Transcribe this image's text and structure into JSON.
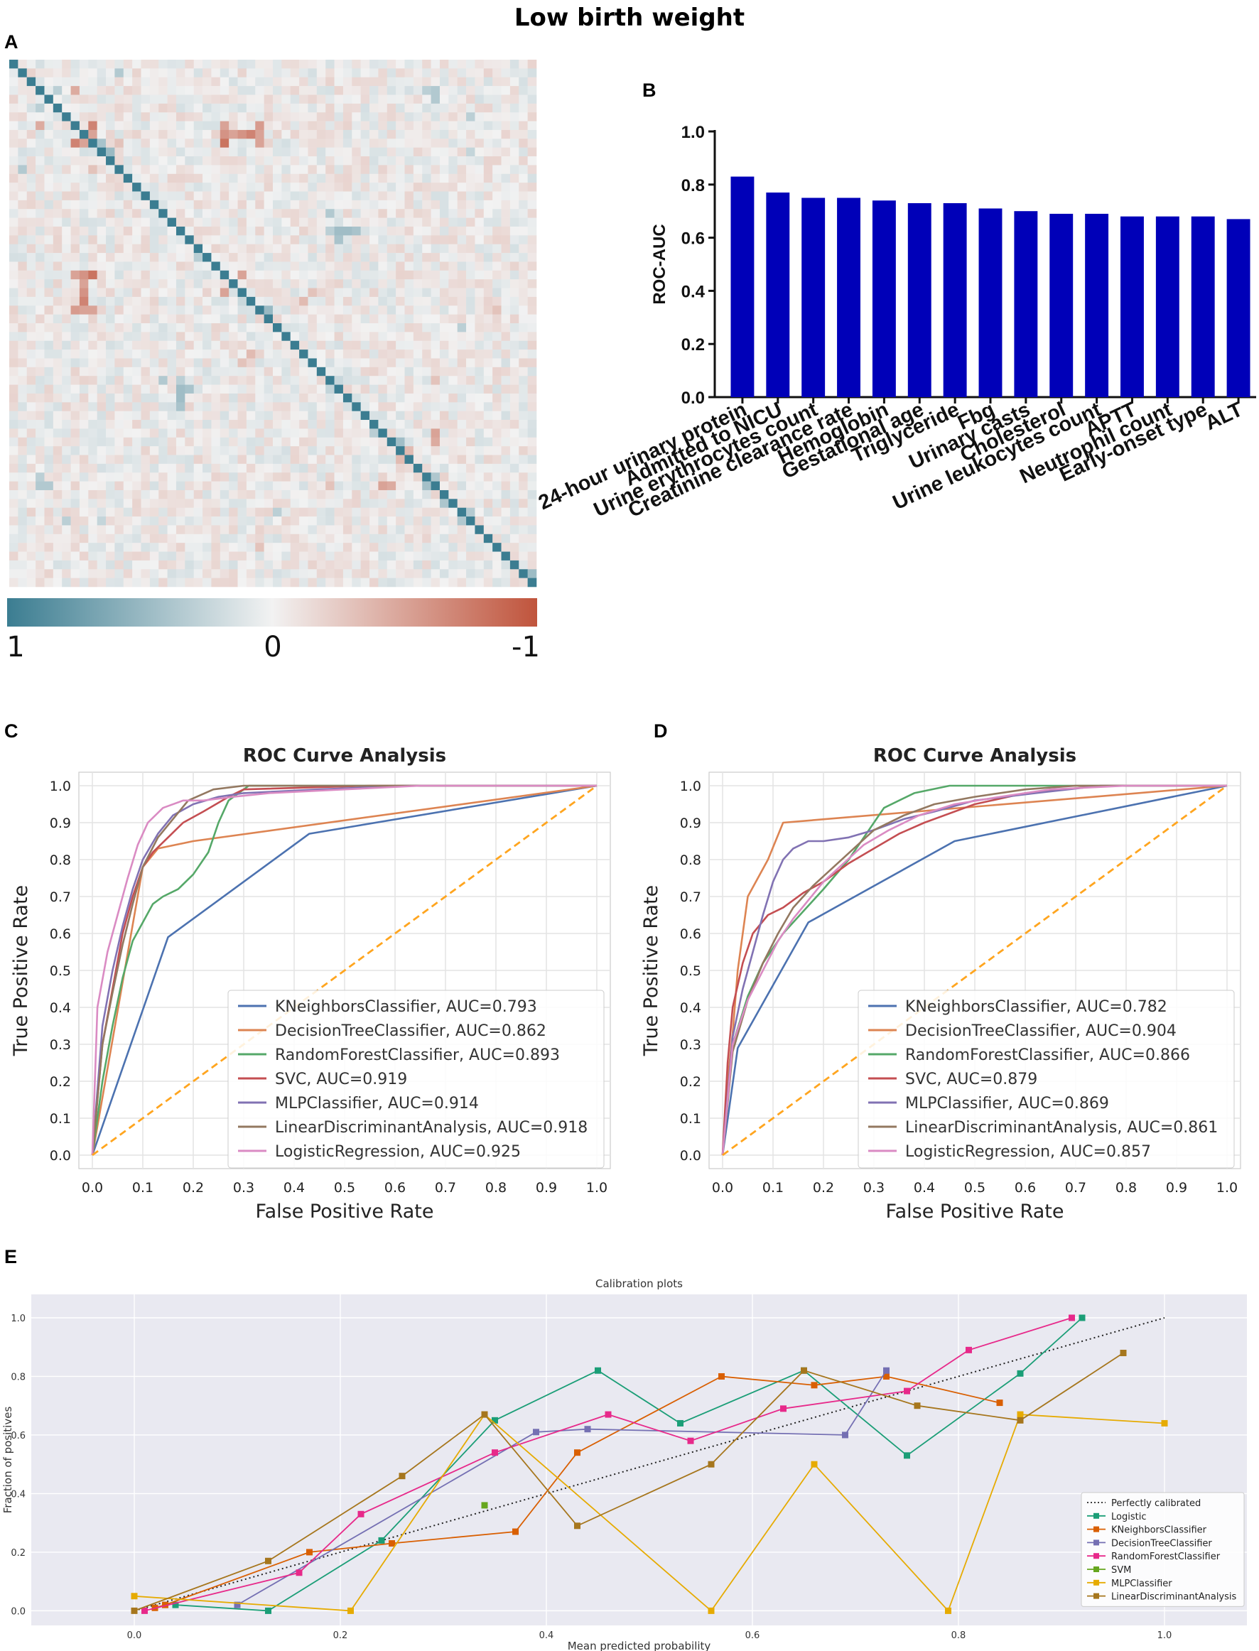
{
  "figure_title": "Low birth weight",
  "panel_letters": [
    "A",
    "B",
    "C",
    "D",
    "E"
  ],
  "chart_data": [
    {
      "panel": "A",
      "type": "heatmap",
      "description": "",
      "size": 60,
      "colorbar": {
        "labels": [
          "1",
          "0",
          "-1"
        ],
        "colors": [
          "#3b7d91",
          "#f2f2f2",
          "#c0543c"
        ]
      },
      "highlights": [
        {
          "r": 3,
          "c": 7,
          "v": -0.45
        },
        {
          "r": 5,
          "c": 3,
          "v": 0.3
        },
        {
          "r": 7,
          "c": 9,
          "v": -0.7
        },
        {
          "r": 8,
          "c": 9,
          "v": -0.5
        },
        {
          "r": 8,
          "c": 24,
          "v": -0.85
        },
        {
          "r": 8,
          "c": 26,
          "v": -0.7
        },
        {
          "r": 8,
          "c": 28,
          "v": -0.75
        },
        {
          "r": 9,
          "c": 24,
          "v": -0.6
        },
        {
          "r": 9,
          "c": 28,
          "v": -0.5
        },
        {
          "r": 7,
          "c": 24,
          "v": -0.5
        },
        {
          "r": 7,
          "c": 28,
          "v": -0.55
        },
        {
          "r": 12,
          "c": 1,
          "v": 0.35
        },
        {
          "r": 24,
          "c": 8,
          "v": -0.6
        },
        {
          "r": 24,
          "c": 9,
          "v": -0.8
        },
        {
          "r": 25,
          "c": 8,
          "v": -0.5
        },
        {
          "r": 26,
          "c": 8,
          "v": -0.6
        },
        {
          "r": 27,
          "c": 8,
          "v": -0.7
        },
        {
          "r": 26,
          "c": 24,
          "v": -0.5
        },
        {
          "r": 28,
          "c": 8,
          "v": -0.5
        },
        {
          "r": 19,
          "c": 37,
          "v": 0.45
        },
        {
          "r": 20,
          "c": 37,
          "v": 0.4
        },
        {
          "r": 38,
          "c": 19,
          "v": 0.45
        },
        {
          "r": 39,
          "c": 19,
          "v": 0.4
        },
        {
          "r": 36,
          "c": 19,
          "v": 0.3
        },
        {
          "r": 48,
          "c": 3,
          "v": 0.35
        },
        {
          "r": 48,
          "c": 4,
          "v": 0.35
        },
        {
          "r": 48,
          "c": 42,
          "v": -0.5
        },
        {
          "r": 48,
          "c": 43,
          "v": -0.45
        },
        {
          "r": 12,
          "c": 9,
          "v": -0.3
        },
        {
          "r": 33,
          "c": 27,
          "v": -0.35
        },
        {
          "r": 34,
          "c": 26,
          "v": -0.3
        },
        {
          "r": 17,
          "c": 36,
          "v": 0.35
        },
        {
          "r": 45,
          "c": 44,
          "v": -0.4
        },
        {
          "r": 44,
          "c": 45,
          "v": -0.35
        },
        {
          "r": 51,
          "c": 30,
          "v": 0.3
        },
        {
          "r": 28,
          "c": 55,
          "v": -0.3
        },
        {
          "r": 36,
          "c": 48,
          "v": -0.3
        },
        {
          "r": 10,
          "c": 52,
          "v": 0.25
        },
        {
          "r": 3,
          "c": 47,
          "v": 0.3
        },
        {
          "r": 6,
          "c": 52,
          "v": 0.3
        }
      ]
    },
    {
      "panel": "B",
      "type": "bar",
      "categories": [
        "24-hour urinary protein",
        "Admitted to NICU",
        "Urine erythrocytes count",
        "Creatinine clearance rate",
        "Hemoglobin",
        "Gestational age",
        "Triglyceride",
        "Fbg",
        "Urinary casts",
        "Cholesterol",
        "Urine leukocytes count",
        "APTT",
        "Neutrophil count",
        "Early-onset type",
        "ALT"
      ],
      "values": [
        0.83,
        0.77,
        0.75,
        0.75,
        0.74,
        0.73,
        0.73,
        0.71,
        0.7,
        0.69,
        0.69,
        0.68,
        0.68,
        0.68,
        0.67
      ],
      "ylabel": "ROC-AUC",
      "ylim": [
        0,
        1.0
      ],
      "yticks": [
        "0.0",
        "0.2",
        "0.4",
        "0.6",
        "0.8",
        "1.0"
      ],
      "color": "#0000b8"
    },
    {
      "panel": "C",
      "type": "line",
      "title": "ROC Curve Analysis",
      "xlabel": "False Positive Rate",
      "ylabel": "True Positive Rate",
      "xticks": [
        "0.0",
        "0.1",
        "0.2",
        "0.3",
        "0.4",
        "0.5",
        "0.6",
        "0.7",
        "0.8",
        "0.9",
        "1.0"
      ],
      "yticks": [
        "0.0",
        "0.1",
        "0.2",
        "0.3",
        "0.4",
        "0.5",
        "0.6",
        "0.7",
        "0.8",
        "0.9",
        "1.0"
      ],
      "legend_position": "lower-right",
      "series": [
        {
          "name": "KNeighborsClassifier, AUC=0.793",
          "color": "#4c72b0",
          "x": [
            0,
            0.15,
            0.43,
            1.0
          ],
          "y": [
            0,
            0.59,
            0.87,
            1.0
          ]
        },
        {
          "name": "DecisionTreeClassifier, AUC=0.862",
          "color": "#dd8452",
          "x": [
            0,
            0.1,
            0.13,
            0.2,
            1.0
          ],
          "y": [
            0,
            0.78,
            0.83,
            0.85,
            1.0
          ]
        },
        {
          "name": "RandomForestClassifier, AUC=0.893",
          "color": "#55a868",
          "x": [
            0,
            0.02,
            0.04,
            0.06,
            0.08,
            0.1,
            0.12,
            0.14,
            0.17,
            0.2,
            0.23,
            0.25,
            0.27,
            0.31,
            0.4,
            0.6,
            1.0
          ],
          "y": [
            0,
            0.2,
            0.35,
            0.48,
            0.58,
            0.63,
            0.68,
            0.7,
            0.72,
            0.76,
            0.82,
            0.9,
            0.96,
            1.0,
            1.0,
            1.0,
            1.0
          ]
        },
        {
          "name": "SVC, AUC=0.919",
          "color": "#c44e52",
          "x": [
            0,
            0.02,
            0.04,
            0.06,
            0.08,
            0.1,
            0.12,
            0.15,
            0.18,
            0.22,
            0.27,
            0.3,
            0.55,
            1.0
          ],
          "y": [
            0,
            0.3,
            0.45,
            0.6,
            0.7,
            0.78,
            0.82,
            0.86,
            0.9,
            0.93,
            0.97,
            0.99,
            1.0,
            1.0
          ]
        },
        {
          "name": "MLPClassifier, AUC=0.914",
          "color": "#8172b3",
          "x": [
            0,
            0.02,
            0.04,
            0.06,
            0.08,
            0.1,
            0.13,
            0.16,
            0.2,
            0.25,
            0.3,
            0.45,
            0.62,
            1.0
          ],
          "y": [
            0,
            0.35,
            0.5,
            0.62,
            0.72,
            0.8,
            0.87,
            0.92,
            0.95,
            0.97,
            0.98,
            0.99,
            1.0,
            1.0
          ]
        },
        {
          "name": "LinearDiscriminantAnalysis, AUC=0.918",
          "color": "#937860",
          "x": [
            0,
            0.02,
            0.04,
            0.06,
            0.08,
            0.1,
            0.13,
            0.16,
            0.19,
            0.24,
            0.3,
            0.45,
            0.62,
            1.0
          ],
          "y": [
            0,
            0.3,
            0.44,
            0.57,
            0.68,
            0.78,
            0.86,
            0.91,
            0.96,
            0.99,
            1.0,
            1.0,
            1.0,
            1.0
          ]
        },
        {
          "name": "LogisticRegression, AUC=0.925",
          "color": "#da8bc3",
          "x": [
            0,
            0.01,
            0.03,
            0.05,
            0.07,
            0.09,
            0.11,
            0.14,
            0.18,
            0.22,
            0.28,
            0.35,
            0.5,
            0.65,
            1.0
          ],
          "y": [
            0,
            0.4,
            0.55,
            0.65,
            0.75,
            0.84,
            0.9,
            0.94,
            0.96,
            0.96,
            0.97,
            0.98,
            0.99,
            1.0,
            1.0
          ]
        },
        {
          "name": "",
          "color": "#ffa51f",
          "dashed": true,
          "x": [
            0,
            1.0
          ],
          "y": [
            0,
            1.0
          ]
        }
      ]
    },
    {
      "panel": "D",
      "type": "line",
      "title": "ROC Curve Analysis",
      "xlabel": "False Positive Rate",
      "ylabel": "True Positive Rate",
      "xticks": [
        "0.0",
        "0.1",
        "0.2",
        "0.3",
        "0.4",
        "0.5",
        "0.6",
        "0.7",
        "0.8",
        "0.9",
        "1.0"
      ],
      "yticks": [
        "0.0",
        "0.1",
        "0.2",
        "0.3",
        "0.4",
        "0.5",
        "0.6",
        "0.7",
        "0.8",
        "0.9",
        "1.0"
      ],
      "legend_position": "lower-right",
      "series": [
        {
          "name": "KNeighborsClassifier, AUC=0.782",
          "color": "#4c72b0",
          "x": [
            0,
            0.03,
            0.17,
            0.46,
            1.0
          ],
          "y": [
            0,
            0.29,
            0.63,
            0.85,
            1.0
          ]
        },
        {
          "name": "DecisionTreeClassifier, AUC=0.904",
          "color": "#dd8452",
          "x": [
            0,
            0.01,
            0.02,
            0.03,
            0.05,
            0.07,
            0.09,
            0.12,
            1.0
          ],
          "y": [
            0,
            0.2,
            0.33,
            0.5,
            0.7,
            0.75,
            0.8,
            0.9,
            1.0
          ]
        },
        {
          "name": "RandomForestClassifier, AUC=0.866",
          "color": "#55a868",
          "x": [
            0,
            0.02,
            0.05,
            0.08,
            0.12,
            0.16,
            0.2,
            0.25,
            0.28,
            0.32,
            0.38,
            0.45,
            0.55,
            0.7,
            1.0
          ],
          "y": [
            0,
            0.3,
            0.43,
            0.52,
            0.6,
            0.66,
            0.72,
            0.8,
            0.86,
            0.94,
            0.98,
            1.0,
            1.0,
            1.0,
            1.0
          ]
        },
        {
          "name": "SVC, AUC=0.879",
          "color": "#c44e52",
          "x": [
            0,
            0.01,
            0.02,
            0.04,
            0.06,
            0.09,
            0.12,
            0.16,
            0.2,
            0.25,
            0.3,
            0.35,
            0.4,
            0.5,
            0.6,
            0.75,
            1.0
          ],
          "y": [
            0,
            0.25,
            0.4,
            0.52,
            0.6,
            0.65,
            0.67,
            0.71,
            0.74,
            0.79,
            0.83,
            0.87,
            0.9,
            0.95,
            0.98,
            1.0,
            1.0
          ]
        },
        {
          "name": "MLPClassifier, AUC=0.869",
          "color": "#8172b3",
          "x": [
            0,
            0.02,
            0.04,
            0.06,
            0.08,
            0.1,
            0.12,
            0.14,
            0.17,
            0.2,
            0.25,
            0.3,
            0.36,
            0.42,
            0.5,
            0.62,
            0.75,
            1.0
          ],
          "y": [
            0,
            0.32,
            0.45,
            0.55,
            0.65,
            0.74,
            0.8,
            0.83,
            0.85,
            0.85,
            0.86,
            0.88,
            0.91,
            0.93,
            0.96,
            0.98,
            1.0,
            1.0
          ]
        },
        {
          "name": "LinearDiscriminantAnalysis, AUC=0.861",
          "color": "#937860",
          "x": [
            0,
            0.02,
            0.05,
            0.08,
            0.11,
            0.14,
            0.18,
            0.22,
            0.26,
            0.3,
            0.36,
            0.42,
            0.5,
            0.6,
            0.7,
            1.0
          ],
          "y": [
            0,
            0.28,
            0.42,
            0.52,
            0.6,
            0.67,
            0.73,
            0.78,
            0.83,
            0.88,
            0.92,
            0.95,
            0.97,
            0.99,
            1.0,
            1.0
          ]
        },
        {
          "name": "LogisticRegression, AUC=0.857",
          "color": "#da8bc3",
          "x": [
            0,
            0.02,
            0.05,
            0.08,
            0.11,
            0.14,
            0.17,
            0.2,
            0.24,
            0.28,
            0.33,
            0.39,
            0.46,
            0.55,
            0.65,
            0.8,
            1.0
          ],
          "y": [
            0,
            0.3,
            0.42,
            0.5,
            0.58,
            0.64,
            0.69,
            0.74,
            0.79,
            0.84,
            0.88,
            0.92,
            0.95,
            0.97,
            0.99,
            1.0,
            1.0
          ]
        },
        {
          "name": "",
          "color": "#ffa51f",
          "dashed": true,
          "x": [
            0,
            1.0
          ],
          "y": [
            0,
            1.0
          ]
        }
      ]
    },
    {
      "panel": "E",
      "type": "line",
      "title": "Calibration plots",
      "xlabel": "Mean predicted probability",
      "ylabel": "Fraction of positives",
      "xticks": [
        "0.0",
        "0.2",
        "0.4",
        "0.6",
        "0.8",
        "1.0"
      ],
      "yticks": [
        "0.0",
        "0.2",
        "0.4",
        "0.6",
        "0.8",
        "1.0"
      ],
      "xlim": [
        -0.1,
        1.08
      ],
      "ylim": [
        -0.05,
        1.08
      ],
      "legend_position": "lower-right",
      "series": [
        {
          "name": "Perfectly calibrated",
          "color": "#222222",
          "dotted": true,
          "x": [
            0,
            1.0
          ],
          "y": [
            0,
            1.0
          ]
        },
        {
          "name": "Logistic",
          "color": "#1b9e77",
          "x": [
            0.04,
            0.13,
            0.24,
            0.35,
            0.45,
            0.53,
            0.65,
            0.75,
            0.86,
            0.92
          ],
          "y": [
            0.02,
            0.0,
            0.24,
            0.65,
            0.82,
            0.64,
            0.82,
            0.53,
            0.81,
            1.0
          ]
        },
        {
          "name": "KNeighborsClassifier",
          "color": "#d95f02",
          "x": [
            0.02,
            0.03,
            0.17,
            0.25,
            0.37,
            0.43,
            0.57,
            0.66,
            0.73,
            0.84
          ],
          "y": [
            0.01,
            0.02,
            0.2,
            0.23,
            0.27,
            0.54,
            0.8,
            0.77,
            0.8,
            0.71
          ]
        },
        {
          "name": "DecisionTreeClassifier",
          "color": "#7570b3",
          "x": [
            0.1,
            0.39,
            0.44,
            0.69,
            0.73
          ],
          "y": [
            0.02,
            0.61,
            0.62,
            0.6,
            0.82
          ]
        },
        {
          "name": "RandomForestClassifier",
          "color": "#e7298a",
          "x": [
            0.01,
            0.16,
            0.22,
            0.35,
            0.46,
            0.54,
            0.63,
            0.75,
            0.81,
            0.91
          ],
          "y": [
            0.0,
            0.13,
            0.33,
            0.54,
            0.67,
            0.58,
            0.69,
            0.75,
            0.89,
            1.0
          ]
        },
        {
          "name": "SVM",
          "color": "#66a61e",
          "x": [
            0.34
          ],
          "y": [
            0.36
          ]
        },
        {
          "name": "MLPClassifier",
          "color": "#e6ab02",
          "x": [
            0.0,
            0.21,
            0.34,
            0.56,
            0.66,
            0.79,
            0.86,
            1.0
          ],
          "y": [
            0.05,
            0.0,
            0.67,
            0.0,
            0.5,
            0.0,
            0.67,
            0.64
          ]
        },
        {
          "name": "LinearDiscriminantAnalysis",
          "color": "#a6761d",
          "x": [
            0.0,
            0.13,
            0.26,
            0.34,
            0.43,
            0.56,
            0.65,
            0.76,
            0.86,
            0.96
          ],
          "y": [
            0.0,
            0.17,
            0.46,
            0.67,
            0.29,
            0.5,
            0.82,
            0.7,
            0.65,
            0.88
          ]
        }
      ]
    }
  ]
}
